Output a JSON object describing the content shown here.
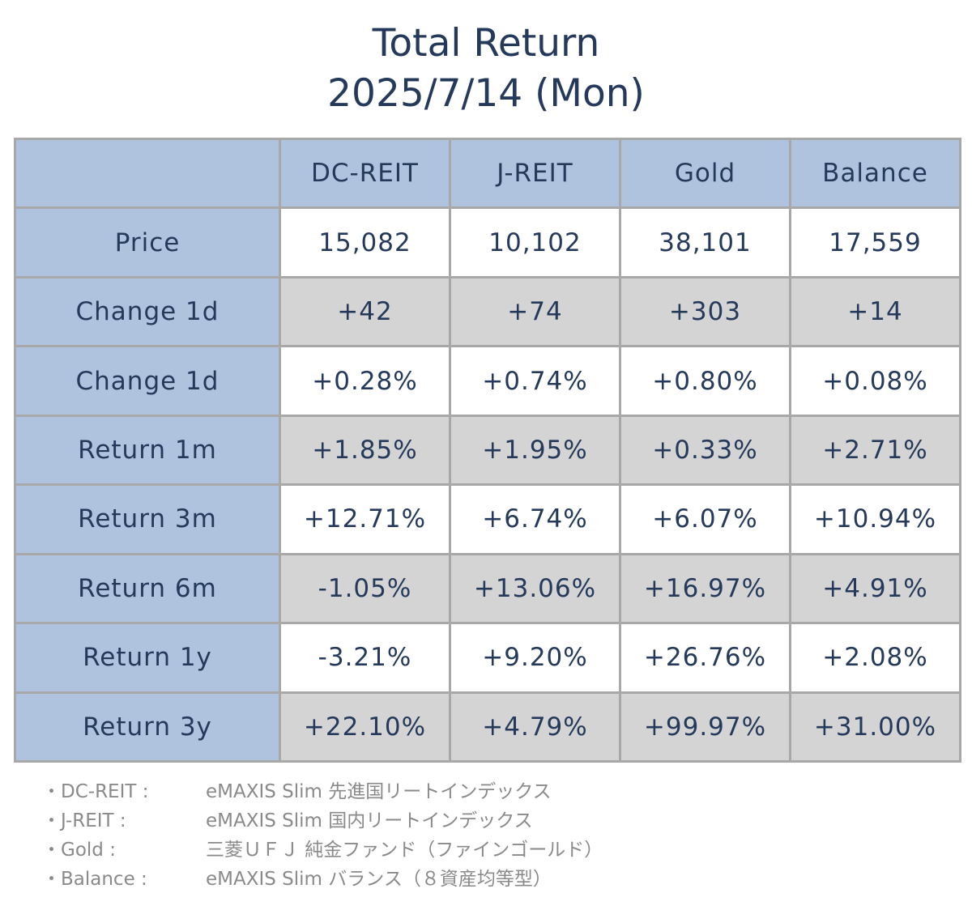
{
  "chart_data": {
    "type": "table",
    "title": "Total Return",
    "subtitle": "2025/7/14 (Mon)",
    "columns": [
      "DC-REIT",
      "J-REIT",
      "Gold",
      "Balance"
    ],
    "rows": [
      {
        "label": "Price",
        "values": [
          "15,082",
          "10,102",
          "38,101",
          "17,559"
        ]
      },
      {
        "label": "Change 1d",
        "values": [
          "+42",
          "+74",
          "+303",
          "+14"
        ]
      },
      {
        "label": "Change 1d",
        "values": [
          "+0.28%",
          "+0.74%",
          "+0.80%",
          "+0.08%"
        ]
      },
      {
        "label": "Return 1m",
        "values": [
          "+1.85%",
          "+1.95%",
          "+0.33%",
          "+2.71%"
        ]
      },
      {
        "label": "Return 3m",
        "values": [
          "+12.71%",
          "+6.74%",
          "+6.07%",
          "+10.94%"
        ]
      },
      {
        "label": "Return 6m",
        "values": [
          "-1.05%",
          "+13.06%",
          "+16.97%",
          "+4.91%"
        ]
      },
      {
        "label": "Return 1y",
        "values": [
          "-3.21%",
          "+9.20%",
          "+26.76%",
          "+2.08%"
        ]
      },
      {
        "label": "Return 3y",
        "values": [
          "+22.10%",
          "+4.79%",
          "+99.97%",
          "+31.00%"
        ]
      }
    ],
    "notes": [
      {
        "key": "・DC-REIT :",
        "value": "eMAXIS Slim 先進国リートインデックス"
      },
      {
        "key": "・J-REIT :",
        "value": "eMAXIS Slim 国内リートインデックス"
      },
      {
        "key": "・Gold :",
        "value": "三菱ＵＦＪ 純金ファンド（ファインゴールド）"
      },
      {
        "key": "・Balance :",
        "value": "eMAXIS Slim バランス（８資産均等型）"
      }
    ],
    "colors": {
      "header_bg": "#afc3de",
      "row_gray": "#d4d4d4",
      "row_white": "#ffffff",
      "border": "#a8a8a8",
      "text": "#253a5b",
      "note_text": "#8a8a8a"
    }
  }
}
